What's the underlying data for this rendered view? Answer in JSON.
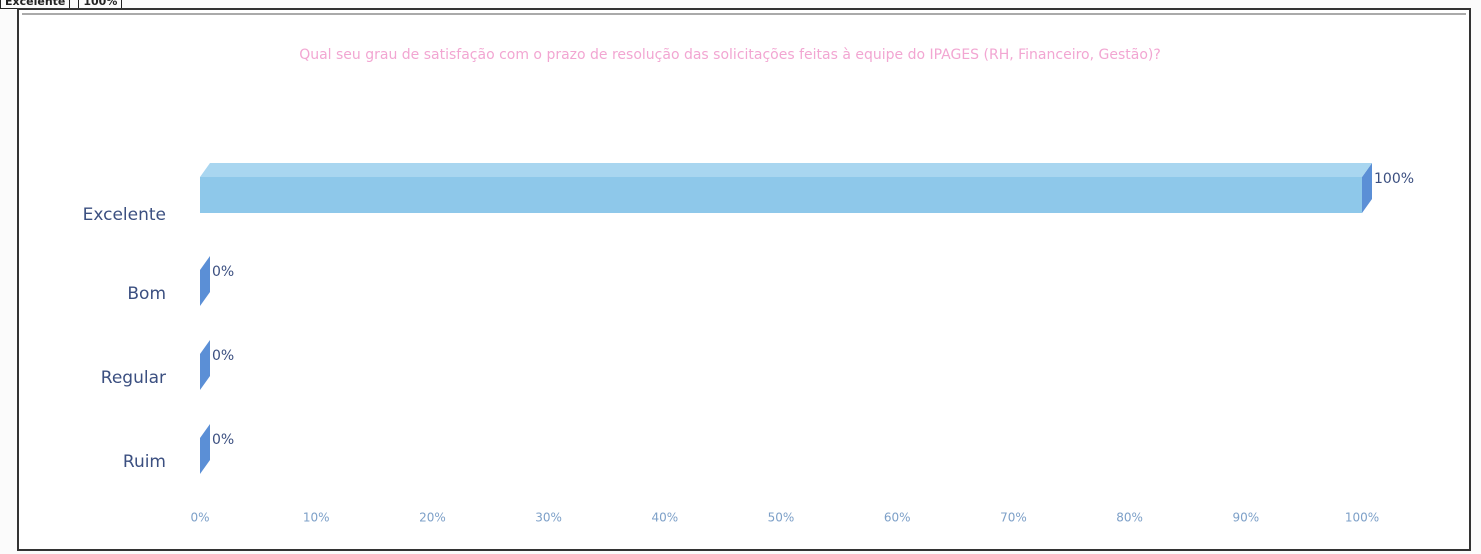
{
  "table_fragment": {
    "cells": [
      "Excelente",
      "100%"
    ]
  },
  "chart_data": {
    "type": "hbar",
    "title": "Qual seu grau de satisfação com o prazo de resolução das solicitações feitas à equipe do IPAGES (RH, Financeiro, Gestão)?",
    "categories": [
      "Excelente",
      "Bom",
      "Regular",
      "Ruim"
    ],
    "values": [
      100,
      0,
      0,
      0
    ],
    "value_labels": [
      "100%",
      "0%",
      "0%",
      "0%"
    ],
    "color": "#8ec8ea",
    "xlim": [
      0,
      100
    ],
    "xticks": [
      {
        "value": 0,
        "label": "0%"
      },
      {
        "value": 10,
        "label": "10%"
      },
      {
        "value": 20,
        "label": "20%"
      },
      {
        "value": 30,
        "label": "30%"
      },
      {
        "value": 40,
        "label": "40%"
      },
      {
        "value": 50,
        "label": "50%"
      },
      {
        "value": 60,
        "label": "60%"
      },
      {
        "value": 70,
        "label": "70%"
      },
      {
        "value": 80,
        "label": "80%"
      },
      {
        "value": 90,
        "label": "90%"
      },
      {
        "value": 100,
        "label": "100%"
      }
    ],
    "grid": false
  }
}
